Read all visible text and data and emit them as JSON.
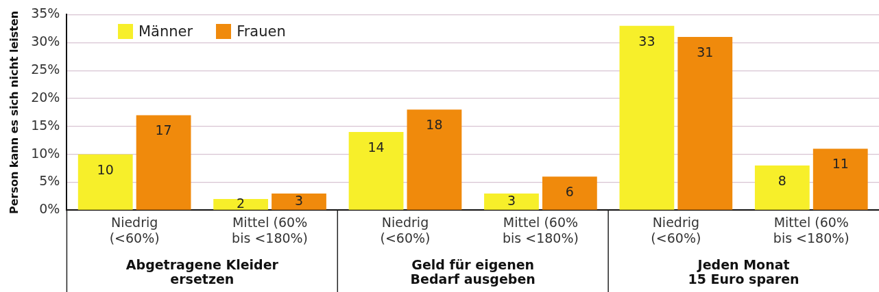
{
  "chart_data": {
    "type": "bar",
    "ylabel": "Person kann es sich nicht leisten",
    "categories": [
      "Niedrig (<60%)",
      "Mittel (60% bis <180%)",
      "Niedrig (<60%)",
      "Mittel (60% bis <180%)",
      "Niedrig (<60%)",
      "Mittel (60% bis <180%)"
    ],
    "series": [
      {
        "name": "Männer",
        "color": "#f7ef2a",
        "values": [
          10,
          2,
          14,
          3,
          33,
          8
        ]
      },
      {
        "name": "Frauen",
        "color": "#f08a0c",
        "values": [
          17,
          3,
          18,
          6,
          31,
          11
        ]
      }
    ],
    "ylim": [
      0,
      35
    ],
    "yticks": [
      {
        "value": 0,
        "label": "0%"
      },
      {
        "value": 5,
        "label": "5%"
      },
      {
        "value": 10,
        "label": "10%"
      },
      {
        "value": 15,
        "label": "15%"
      },
      {
        "value": 20,
        "label": "20%"
      },
      {
        "value": 25,
        "label": "25%"
      },
      {
        "value": 30,
        "label": "30%"
      },
      {
        "value": 35,
        "label": "35%"
      }
    ],
    "grid": "y",
    "legend": "top left",
    "data_labels": true,
    "annotations": [
      "Abgetragene Kleider\nersetzen",
      "Geld für eigenen\nBedarf ausgeben",
      "Jeden Monat\n15 Euro sparen"
    ]
  }
}
